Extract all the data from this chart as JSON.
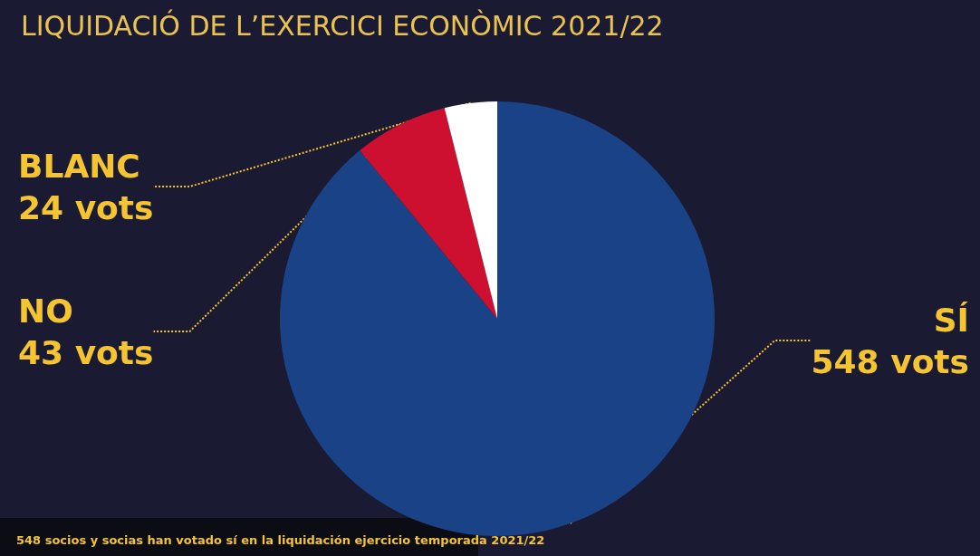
{
  "chart_data": {
    "type": "pie",
    "title": "LIQUIDACIÓ DE L’EXERCICI ECONÒMIC 2021/22",
    "categories": [
      "SÍ",
      "NO",
      "BLANC"
    ],
    "values": [
      548,
      43,
      24
    ],
    "value_labels": [
      "548 vots",
      "43 vots",
      "24 vots"
    ],
    "colors": [
      "#1a4286",
      "#cd1030",
      "#ffffff"
    ],
    "annotations": [
      "548 socios y socias han votado sí en la liquidación ejercicio temporada 2021/22"
    ],
    "legend": false
  }
}
